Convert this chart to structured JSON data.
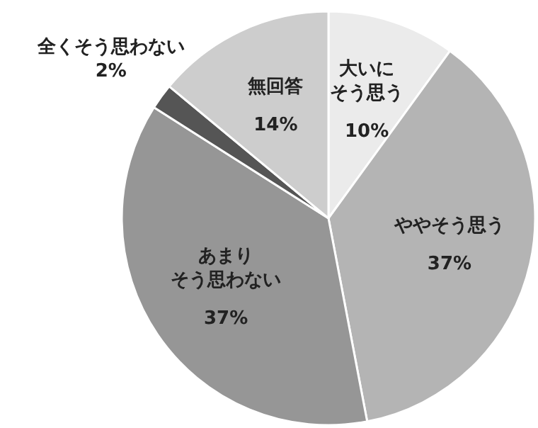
{
  "chart_data": {
    "type": "pie",
    "categories": [
      "大いにそう思う",
      "ややそう思う",
      "あまりそう思わない",
      "全くそう思わない",
      "無回答"
    ],
    "values": [
      10,
      37,
      37,
      2,
      14
    ],
    "value_labels": [
      "10%",
      "37%",
      "37%",
      "2%",
      "14%"
    ],
    "colors": [
      "#ebebeb",
      "#b4b4b4",
      "#969696",
      "#555555",
      "#cdcdcd"
    ]
  }
}
